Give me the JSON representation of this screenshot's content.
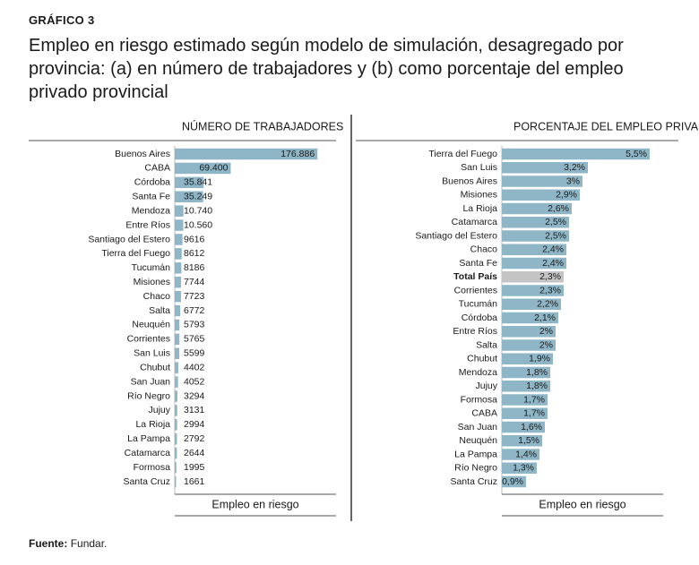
{
  "header": {
    "kicker": "GRÁFICO 3",
    "title": "Empleo en riesgo estimado según modelo de simulación, desagregado por provincia: (a) en número de trabajadores y (b) como porcentaje del empleo privado provincial"
  },
  "chart_data": [
    {
      "type": "hbar",
      "title": "NÚMERO DE TRABAJADORES",
      "x_label": "Empleo en riesgo",
      "color": "#8fb6c7",
      "categories": [
        "Buenos Aires",
        "CABA",
        "Córdoba",
        "Santa Fe",
        "Mendoza",
        "Entre Ríos",
        "Santiago del Estero",
        "Tierra del Fuego",
        "Tucumán",
        "Misiones",
        "Chaco",
        "Salta",
        "Neuquén",
        "Corrientes",
        "San Luis",
        "Chubut",
        "San Juan",
        "Río Negro",
        "Jujuy",
        "La Rioja",
        "La Pampa",
        "Catamarca",
        "Formosa",
        "Santa Cruz"
      ],
      "values": [
        176886,
        69400,
        35841,
        35249,
        10740,
        10560,
        9616,
        8612,
        8186,
        7744,
        7723,
        6772,
        5793,
        5765,
        5599,
        4402,
        4052,
        3294,
        3131,
        2994,
        2792,
        2644,
        1995,
        1661
      ],
      "value_labels": [
        "176.886",
        "69.400",
        "35.841",
        "35.249",
        "10.740",
        "10.560",
        "9616",
        "8612",
        "8186",
        "7744",
        "7723",
        "6772",
        "5793",
        "5765",
        "5599",
        "4402",
        "4052",
        "3294",
        "3131",
        "2994",
        "2792",
        "2644",
        "1995",
        "1661"
      ],
      "xlim": [
        0,
        200000
      ]
    },
    {
      "type": "hbar",
      "title": "PORCENTAJE DEL EMPLEO PRIVADO PROVINCIAL",
      "x_label": "Empleo en riesgo",
      "color": "#8fb6c7",
      "categories": [
        "Tierra del Fuego",
        "San Luis",
        "Buenos Aires",
        "Misiones",
        "La Rioja",
        "Catamarca",
        "Santiago del Estero",
        "Chaco",
        "Santa Fe",
        "Total País",
        "Corrientes",
        "Tucumán",
        "Córdoba",
        "Entre Ríos",
        "Salta",
        "Chubut",
        "Mendoza",
        "Jujuy",
        "Formosa",
        "CABA",
        "San Juan",
        "Neuquén",
        "La Pampa",
        "Río Negro",
        "Santa Cruz"
      ],
      "values": [
        5.5,
        3.2,
        3,
        2.9,
        2.6,
        2.5,
        2.5,
        2.4,
        2.4,
        2.3,
        2.3,
        2.2,
        2.1,
        2,
        2,
        1.9,
        1.8,
        1.8,
        1.7,
        1.7,
        1.6,
        1.5,
        1.4,
        1.3,
        0.9
      ],
      "value_labels": [
        "5,5%",
        "3,2%",
        "3%",
        "2,9%",
        "2,6%",
        "2,5%",
        "2,5%",
        "2,4%",
        "2,4%",
        "2,3%",
        "2,3%",
        "2,2%",
        "2,1%",
        "2%",
        "2%",
        "1,9%",
        "1,8%",
        "1,8%",
        "1,7%",
        "1,7%",
        "1,6%",
        "1,5%",
        "1,4%",
        "1,3%",
        "0,9%"
      ],
      "colors": [
        "#8fb6c7",
        "#8fb6c7",
        "#8fb6c7",
        "#8fb6c7",
        "#8fb6c7",
        "#8fb6c7",
        "#8fb6c7",
        "#8fb6c7",
        "#8fb6c7",
        "#c4c4c4",
        "#8fb6c7",
        "#8fb6c7",
        "#8fb6c7",
        "#8fb6c7",
        "#8fb6c7",
        "#8fb6c7",
        "#8fb6c7",
        "#8fb6c7",
        "#8fb6c7",
        "#8fb6c7",
        "#8fb6c7",
        "#8fb6c7",
        "#8fb6c7",
        "#8fb6c7",
        "#8fb6c7"
      ],
      "xlim": [
        0,
        6
      ]
    }
  ],
  "source": {
    "label": "Fuente:",
    "text": "Fundar."
  }
}
